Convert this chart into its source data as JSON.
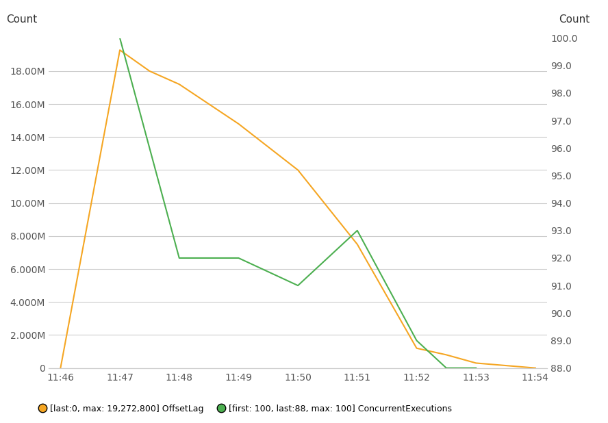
{
  "background_color": "#ffffff",
  "left_ylabel": "Count",
  "right_ylabel": "Count",
  "x_ticks": [
    "11:46",
    "11:47",
    "11:48",
    "11:49",
    "11:50",
    "11:51",
    "11:52",
    "11:53",
    "11:54"
  ],
  "orange_x": [
    0,
    1,
    1.5,
    2,
    3,
    4,
    5,
    6,
    6.5,
    7,
    8
  ],
  "orange_y": [
    0,
    19272800,
    18000000,
    17200000,
    14800000,
    12000000,
    7500000,
    1200000,
    800000,
    300000,
    0
  ],
  "green_x": [
    1,
    2,
    3,
    4,
    5,
    6,
    6.5,
    7
  ],
  "green_y_right": [
    100.0,
    92.0,
    92.0,
    91.0,
    93.0,
    89.0,
    88.0,
    88.0
  ],
  "orange_color": "#f5a623",
  "green_color": "#4caf50",
  "left_ylim": [
    0,
    20000000
  ],
  "right_ylim": [
    88.0,
    100.0
  ],
  "left_ytick_values": [
    0,
    2000000,
    4000000,
    6000000,
    8000000,
    10000000,
    12000000,
    14000000,
    16000000,
    18000000
  ],
  "left_ytick_labels": [
    "0",
    "2.000M",
    "4.000M",
    "6.000M",
    "8.000M",
    "10.00M",
    "12.00M",
    "14.00M",
    "16.00M",
    "18.00M"
  ],
  "right_yticks": [
    88.0,
    89.0,
    90.0,
    91.0,
    92.0,
    93.0,
    94.0,
    95.0,
    96.0,
    97.0,
    98.0,
    99.0,
    100.0
  ],
  "grid_color": "#cccccc",
  "legend_orange": "[last:0, max: 19,272,800] OffsetLag",
  "legend_green": "[first: 100, last:88, max: 100] ConcurrentExecutions",
  "tick_label_color": "#555555",
  "axis_label_color": "#333333",
  "tick_fontsize": 10,
  "label_fontsize": 11,
  "legend_fontsize": 9
}
